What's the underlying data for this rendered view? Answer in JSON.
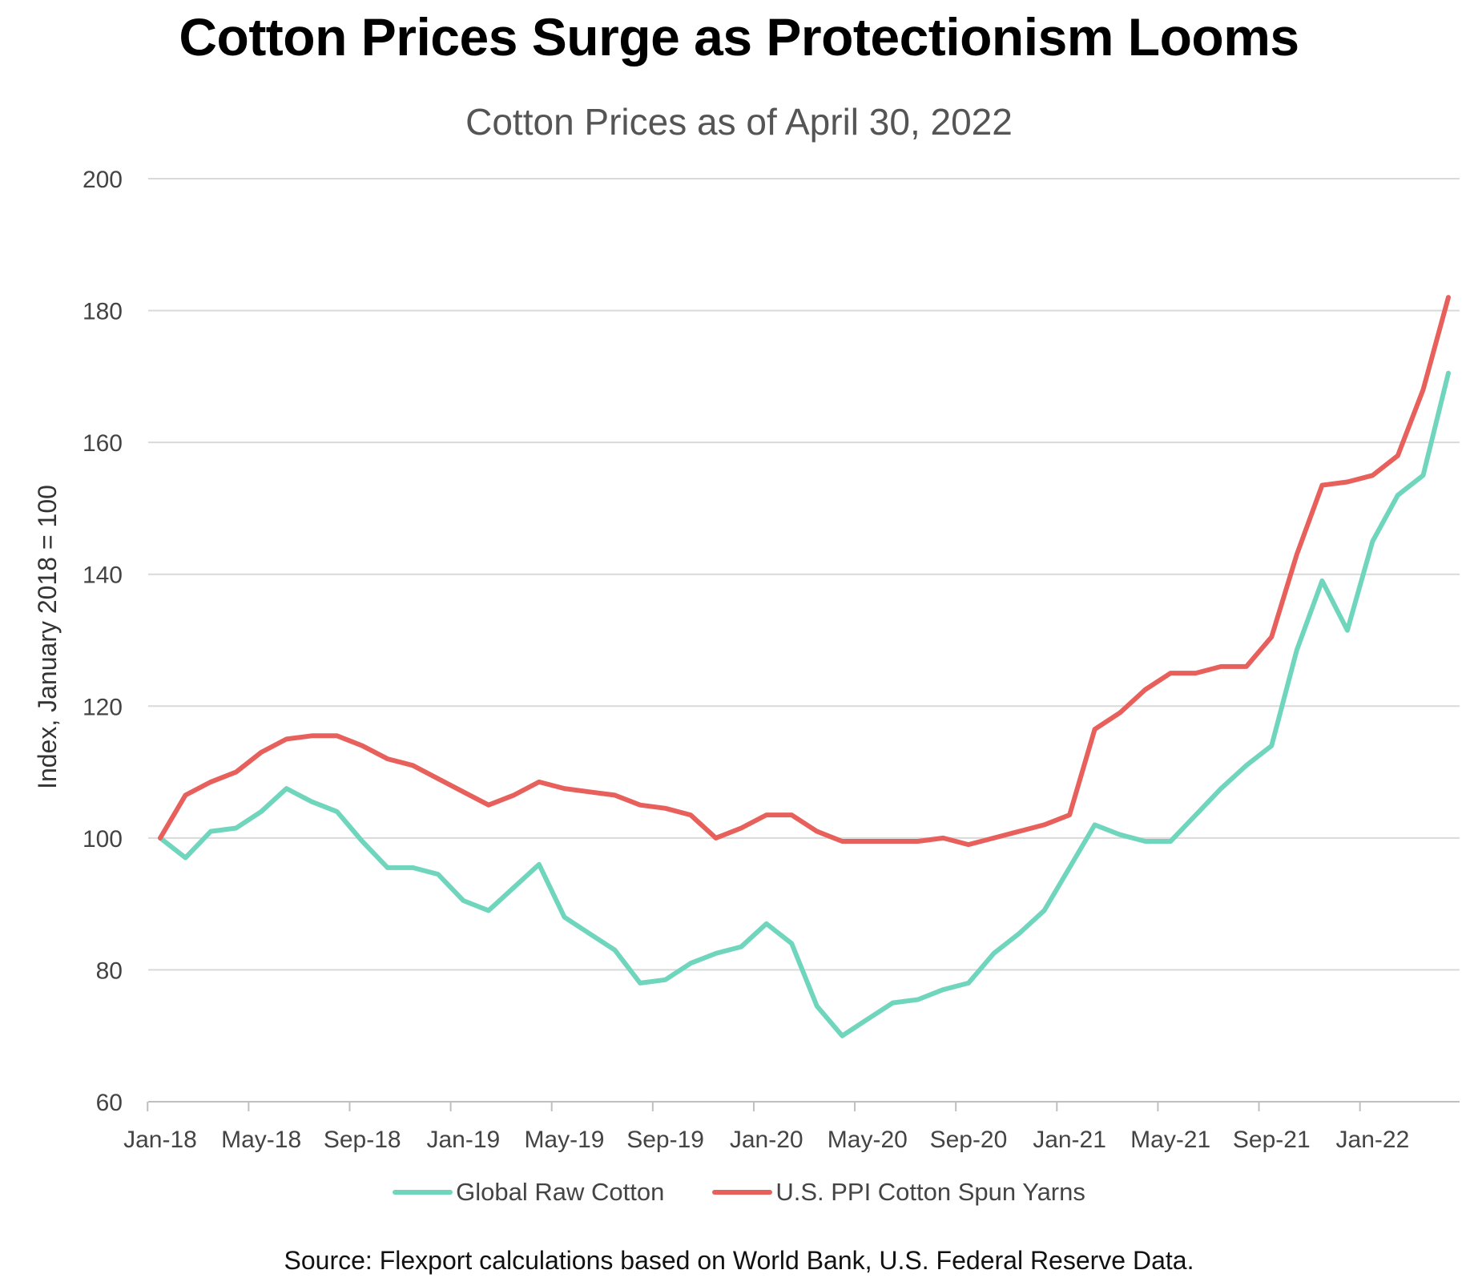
{
  "chart_data": {
    "type": "line",
    "title": "Cotton Prices Surge as Protectionism Looms",
    "subtitle": "Cotton Prices as of April 30, 2022",
    "xlabel": "",
    "ylabel": "Index, January 2018 = 100",
    "ylim": [
      60,
      200
    ],
    "yticks": [
      60,
      80,
      100,
      120,
      140,
      160,
      180,
      200
    ],
    "grid": true,
    "legend_position": "bottom",
    "source": "Source: Flexport calculations based on World Bank, U.S. Federal Reserve Data.",
    "x_tick_labels": [
      "Jan-18",
      "May-18",
      "Sep-18",
      "Jan-19",
      "May-19",
      "Sep-19",
      "Jan-20",
      "May-20",
      "Sep-20",
      "Jan-21",
      "May-21",
      "Sep-21",
      "Jan-22"
    ],
    "x_tick_every": 4,
    "x": [
      "Jan-18",
      "Feb-18",
      "Mar-18",
      "Apr-18",
      "May-18",
      "Jun-18",
      "Jul-18",
      "Aug-18",
      "Sep-18",
      "Oct-18",
      "Nov-18",
      "Dec-18",
      "Jan-19",
      "Feb-19",
      "Mar-19",
      "Apr-19",
      "May-19",
      "Jun-19",
      "Jul-19",
      "Aug-19",
      "Sep-19",
      "Oct-19",
      "Nov-19",
      "Dec-19",
      "Jan-20",
      "Feb-20",
      "Mar-20",
      "Apr-20",
      "May-20",
      "Jun-20",
      "Jul-20",
      "Aug-20",
      "Sep-20",
      "Oct-20",
      "Nov-20",
      "Dec-20",
      "Jan-21",
      "Feb-21",
      "Mar-21",
      "Apr-21",
      "May-21",
      "Jun-21",
      "Jul-21",
      "Aug-21",
      "Sep-21",
      "Oct-21",
      "Nov-21",
      "Dec-21",
      "Jan-22",
      "Feb-22",
      "Mar-22",
      "Apr-22"
    ],
    "series": [
      {
        "name": "Global Raw Cotton",
        "color": "#6fd6bd",
        "values": [
          100,
          97,
          101,
          101.5,
          104,
          107.5,
          105.5,
          104,
          99.5,
          95.5,
          95.5,
          94.5,
          90.5,
          89,
          92.5,
          96,
          88,
          85.5,
          83,
          78,
          78.5,
          81,
          82.5,
          83.5,
          87,
          84,
          74.5,
          70,
          72.5,
          75,
          75.5,
          77,
          78,
          82.5,
          85.5,
          89,
          95.5,
          102,
          100.5,
          99.5,
          99.5,
          103.5,
          107.5,
          111,
          114,
          128.5,
          139,
          131.5,
          145,
          152,
          155,
          170.5
        ]
      },
      {
        "name": "U.S. PPI Cotton Spun Yarns",
        "color": "#e8605b",
        "values": [
          100,
          106.5,
          108.5,
          110,
          113,
          115,
          115.5,
          115.5,
          114,
          112,
          111,
          109,
          107,
          105,
          106.5,
          108.5,
          107.5,
          107,
          106.5,
          105,
          104.5,
          103.5,
          100,
          101.5,
          103.5,
          103.5,
          101,
          99.5,
          99.5,
          99.5,
          99.5,
          100,
          99,
          100,
          101,
          102,
          103.5,
          116.5,
          119,
          122.5,
          125,
          125,
          126,
          126,
          130.5,
          143,
          153.5,
          154,
          155,
          158,
          168,
          182
        ]
      }
    ]
  }
}
